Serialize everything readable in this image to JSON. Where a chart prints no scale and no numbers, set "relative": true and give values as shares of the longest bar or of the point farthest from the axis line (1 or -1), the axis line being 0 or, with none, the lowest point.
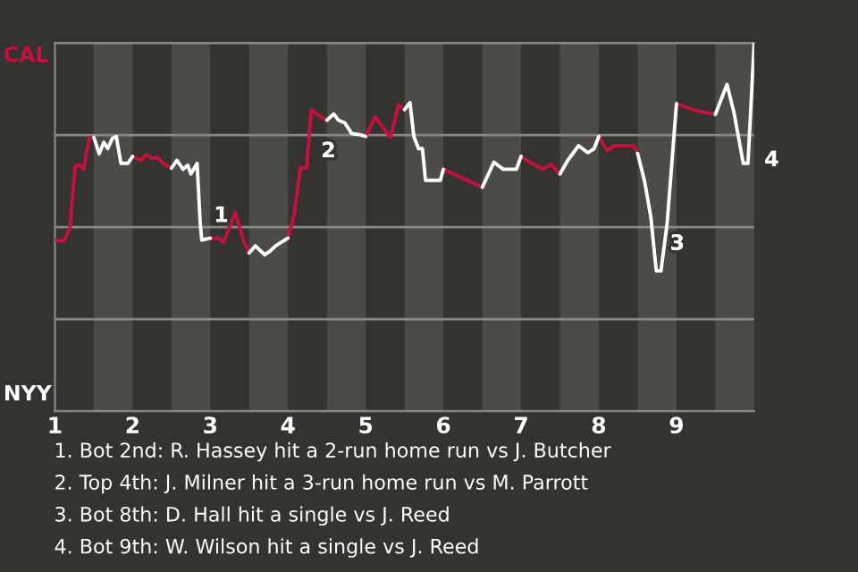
{
  "chart_data": {
    "type": "line",
    "relative": true,
    "xlim": [
      1,
      10
    ],
    "xticks": [
      1,
      2,
      3,
      4,
      5,
      6,
      7,
      8,
      9
    ],
    "grid": "y",
    "series": [
      {
        "color": "#c8103c",
        "x": [
          1,
          1.11,
          1.19,
          1.26,
          1.31,
          1.37,
          1.44,
          1.5,
          null,
          2,
          2.11,
          2.17,
          2.26,
          2.32,
          2.4,
          2.5,
          null,
          3,
          3.1,
          3.17,
          3.32,
          3.43,
          3.5,
          null,
          4,
          4.08,
          4.16,
          4.24,
          4.3,
          4.39,
          4.5,
          null,
          5,
          5.12,
          5.32,
          5.42,
          5.5,
          null,
          6,
          6.5,
          null,
          7,
          7.11,
          7.28,
          7.39,
          7.5,
          null,
          8,
          8.04,
          8.11,
          8.19,
          8.45,
          8.5,
          null,
          9,
          9.27,
          9.5
        ],
        "values": [
          0.465,
          0.462,
          0.494,
          0.665,
          0.67,
          0.657,
          0.741,
          0.744,
          null,
          0.692,
          0.681,
          0.697,
          0.686,
          0.689,
          0.673,
          0.66,
          null,
          0.47,
          0.47,
          0.459,
          0.54,
          0.462,
          0.43,
          null,
          0.47,
          0.535,
          0.661,
          0.661,
          0.819,
          0.803,
          0.79,
          null,
          0.746,
          0.799,
          0.743,
          0.832,
          0.819,
          null,
          0.657,
          0.608,
          null,
          0.692,
          0.676,
          0.657,
          0.67,
          0.644,
          null,
          0.746,
          0.73,
          0.708,
          0.721,
          0.721,
          0.7,
          null,
          0.835,
          0.815,
          0.806
        ]
      },
      {
        "color": "#ffffff",
        "x": [
          1.5,
          1.57,
          1.63,
          1.68,
          1.74,
          1.79,
          1.85,
          1.94,
          2,
          null,
          2.5,
          2.57,
          2.65,
          2.71,
          2.75,
          2.83,
          2.87,
          2.89,
          3,
          null,
          3.5,
          3.58,
          3.7,
          3.76,
          3.84,
          4,
          null,
          4.5,
          4.59,
          4.65,
          4.73,
          4.82,
          4.92,
          5,
          null,
          5.5,
          5.53,
          5.57,
          5.62,
          5.68,
          5.73,
          5.77,
          5.86,
          5.96,
          6,
          null,
          6.5,
          6.65,
          6.77,
          6.94,
          7,
          null,
          7.5,
          7.6,
          7.74,
          7.86,
          7.94,
          8,
          null,
          8.5,
          8.59,
          8.67,
          8.74,
          8.8,
          8.88,
          9,
          null,
          9.5,
          9.65,
          9.74,
          9.86,
          9.92,
          10
        ],
        "values": [
          0.744,
          0.699,
          0.73,
          0.713,
          0.741,
          0.746,
          0.673,
          0.673,
          0.692,
          null,
          0.66,
          0.681,
          0.657,
          0.668,
          0.644,
          0.673,
          0.511,
          0.465,
          0.47,
          null,
          0.43,
          0.449,
          0.425,
          0.433,
          0.449,
          0.47,
          null,
          0.79,
          0.807,
          0.79,
          0.783,
          0.754,
          0.751,
          0.746,
          null,
          0.819,
          0.827,
          0.838,
          0.746,
          0.713,
          0.713,
          0.627,
          0.627,
          0.627,
          0.657,
          null,
          0.608,
          0.676,
          0.657,
          0.657,
          0.692,
          null,
          0.644,
          0.681,
          0.721,
          0.702,
          0.713,
          0.746,
          null,
          0.7,
          0.624,
          0.527,
          0.381,
          0.381,
          0.511,
          0.835,
          null,
          0.806,
          0.887,
          0.811,
          0.673,
          0.673,
          1.0
        ]
      }
    ],
    "bands": [
      {
        "axis": "x",
        "from": 1.5,
        "to": 2,
        "color": "#4d4b48"
      },
      {
        "axis": "x",
        "from": 2.5,
        "to": 3,
        "color": "#4d4b48"
      },
      {
        "axis": "x",
        "from": 3.5,
        "to": 4,
        "color": "#4d4b48"
      },
      {
        "axis": "x",
        "from": 4.5,
        "to": 5,
        "color": "#4d4b48"
      },
      {
        "axis": "x",
        "from": 5.5,
        "to": 6,
        "color": "#4d4b48"
      },
      {
        "axis": "x",
        "from": 6.5,
        "to": 7,
        "color": "#4d4b48"
      },
      {
        "axis": "x",
        "from": 7.5,
        "to": 8,
        "color": "#4d4b48"
      },
      {
        "axis": "x",
        "from": 8.5,
        "to": 9,
        "color": "#4d4b48"
      },
      {
        "axis": "x",
        "from": 9.5,
        "to": 10,
        "color": "#4d4b48"
      }
    ],
    "annotations": [
      "CAL",
      "NYY",
      {
        "text": "1",
        "x": 2.98,
        "y": 0.53
      },
      {
        "text": "2",
        "x": 4.36,
        "y": 0.705
      },
      {
        "text": "3",
        "x": 8.85,
        "y": 0.454
      },
      {
        "text": "4",
        "x": 9.97,
        "y": 0.681
      },
      "1. Bot 2nd: R. Hassey hit a 2-run home run vs J. Butcher",
      "2. Top 4th: J. Milner hit a 3-run home run vs M. Parrott",
      "3. Bot 8th: D. Hall hit a single vs J. Reed",
      "4. Bot 9th: W. Wilson hit a single vs J. Reed"
    ]
  }
}
